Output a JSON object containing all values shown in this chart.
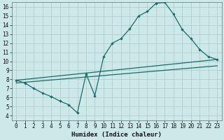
{
  "xlabel": "Humidex (Indice chaleur)",
  "background_color": "#cce8e8",
  "grid_color": "#aacccc",
  "line_color": "#1a6b6b",
  "xlim": [
    -0.5,
    23.5
  ],
  "ylim": [
    3.5,
    16.5
  ],
  "yticks": [
    4,
    5,
    6,
    7,
    8,
    9,
    10,
    11,
    12,
    13,
    14,
    15,
    16
  ],
  "xticks": [
    0,
    1,
    2,
    3,
    4,
    5,
    6,
    7,
    8,
    9,
    10,
    11,
    12,
    13,
    14,
    15,
    16,
    17,
    18,
    19,
    20,
    21,
    22,
    23
  ],
  "line1_x": [
    0,
    1,
    2,
    3,
    4,
    5,
    6,
    7,
    8,
    9,
    10,
    11,
    12,
    13,
    14,
    15,
    16,
    17,
    18,
    19,
    20,
    21,
    22,
    23
  ],
  "line1_y": [
    7.9,
    7.6,
    7.0,
    6.5,
    6.1,
    5.6,
    5.2,
    4.3,
    8.6,
    6.2,
    10.5,
    12.0,
    12.5,
    13.6,
    15.0,
    15.5,
    16.4,
    16.5,
    15.2,
    13.5,
    12.5,
    11.3,
    10.5,
    10.2
  ],
  "line2_x": [
    0,
    23
  ],
  "line2_y": [
    7.9,
    10.2
  ],
  "line3_x": [
    0,
    23
  ],
  "line3_y": [
    7.6,
    9.5
  ]
}
